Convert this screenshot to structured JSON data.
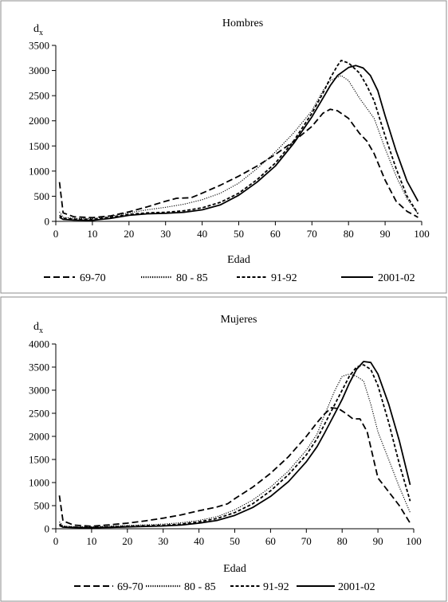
{
  "chart_data": [
    {
      "type": "line",
      "title": "Hombres",
      "ylabel_main": "d",
      "ylabel_sub": "x",
      "xlabel": "Edad",
      "xlim": [
        0,
        100
      ],
      "ylim": [
        0,
        3500
      ],
      "xticks": [
        0,
        10,
        20,
        30,
        40,
        50,
        60,
        70,
        80,
        90,
        100
      ],
      "yticks": [
        0,
        500,
        1000,
        1500,
        2000,
        2500,
        3000,
        3500
      ],
      "legend_position": "bottom",
      "grid": false,
      "series": [
        {
          "name": "69-70",
          "style": "dash",
          "x": [
            1,
            2,
            5,
            10,
            15,
            20,
            25,
            30,
            33,
            37,
            40,
            45,
            50,
            55,
            60,
            65,
            70,
            73,
            75,
            77,
            80,
            83,
            85,
            87,
            90,
            93,
            96,
            99
          ],
          "y": [
            780,
            170,
            90,
            75,
            110,
            190,
            290,
            400,
            460,
            470,
            560,
            720,
            900,
            1100,
            1330,
            1590,
            1890,
            2150,
            2230,
            2200,
            2050,
            1750,
            1600,
            1350,
            820,
            400,
            200,
            80
          ]
        },
        {
          "name": "80 - 85",
          "style": "dot",
          "x": [
            1,
            2,
            5,
            10,
            15,
            20,
            25,
            30,
            35,
            40,
            45,
            50,
            55,
            60,
            65,
            70,
            73,
            75,
            78,
            80,
            83,
            85,
            87,
            90,
            93,
            96,
            99
          ],
          "y": [
            190,
            80,
            60,
            55,
            100,
            170,
            230,
            280,
            340,
            430,
            560,
            760,
            1050,
            1380,
            1760,
            2200,
            2600,
            2800,
            2900,
            2800,
            2450,
            2250,
            2050,
            1450,
            900,
            450,
            150
          ]
        },
        {
          "name": "91-92",
          "style": "dash-short",
          "x": [
            1,
            2,
            5,
            10,
            15,
            20,
            25,
            30,
            35,
            40,
            45,
            50,
            55,
            60,
            65,
            70,
            73,
            75,
            77,
            78,
            80,
            83,
            85,
            87,
            90,
            93,
            96,
            99
          ],
          "y": [
            120,
            60,
            45,
            40,
            80,
            140,
            170,
            180,
            210,
            270,
            380,
            560,
            830,
            1160,
            1600,
            2150,
            2550,
            2850,
            3100,
            3200,
            3150,
            2950,
            2700,
            2400,
            1700,
            1050,
            500,
            150
          ]
        },
        {
          "name": "2001-02",
          "style": "solid",
          "x": [
            1,
            2,
            5,
            10,
            15,
            20,
            25,
            30,
            35,
            40,
            45,
            50,
            55,
            60,
            65,
            70,
            73,
            75,
            77,
            80,
            82,
            84,
            86,
            88,
            90,
            93,
            96,
            99
          ],
          "y": [
            80,
            40,
            25,
            20,
            60,
            120,
            150,
            160,
            180,
            230,
            330,
            520,
            780,
            1100,
            1550,
            2080,
            2450,
            2700,
            2900,
            3060,
            3100,
            3050,
            2900,
            2600,
            2100,
            1400,
            800,
            400
          ]
        }
      ]
    },
    {
      "type": "line",
      "title": "Mujeres",
      "ylabel_main": "d",
      "ylabel_sub": "x",
      "xlabel": "Edad",
      "xlim": [
        0,
        100
      ],
      "ylim": [
        0,
        4000
      ],
      "xticks": [
        0,
        10,
        20,
        30,
        40,
        50,
        60,
        70,
        80,
        90,
        100
      ],
      "yticks": [
        0,
        500,
        1000,
        1500,
        2000,
        2500,
        3000,
        3500,
        4000
      ],
      "legend_position": "bottom",
      "grid": false,
      "series": [
        {
          "name": "69-70",
          "style": "dash",
          "x": [
            1,
            2,
            5,
            10,
            15,
            20,
            25,
            30,
            35,
            40,
            45,
            48,
            50,
            55,
            60,
            65,
            70,
            73,
            75,
            77,
            79,
            81,
            83,
            85,
            87,
            90,
            93,
            96,
            99
          ],
          "y": [
            720,
            170,
            80,
            55,
            85,
            120,
            170,
            230,
            300,
            390,
            470,
            540,
            650,
            900,
            1200,
            1560,
            2000,
            2300,
            2480,
            2620,
            2600,
            2500,
            2380,
            2380,
            2100,
            1100,
            800,
            500,
            120
          ]
        },
        {
          "name": "80 - 85",
          "style": "dot",
          "x": [
            1,
            2,
            5,
            10,
            15,
            20,
            25,
            30,
            35,
            40,
            45,
            50,
            55,
            60,
            65,
            70,
            73,
            75,
            78,
            80,
            82,
            84,
            86,
            88,
            90,
            93,
            96,
            99
          ],
          "y": [
            150,
            60,
            45,
            40,
            55,
            70,
            85,
            100,
            130,
            180,
            260,
            410,
            620,
            900,
            1250,
            1700,
            2050,
            2450,
            3000,
            3300,
            3350,
            3300,
            3200,
            2700,
            2100,
            1500,
            900,
            350
          ]
        },
        {
          "name": "91-92",
          "style": "dash-short",
          "x": [
            1,
            2,
            5,
            10,
            15,
            20,
            25,
            30,
            35,
            40,
            45,
            50,
            55,
            60,
            65,
            70,
            73,
            75,
            78,
            80,
            82,
            84,
            86,
            88,
            90,
            93,
            96,
            99
          ],
          "y": [
            100,
            45,
            35,
            30,
            40,
            55,
            65,
            75,
            100,
            150,
            220,
            350,
            540,
            820,
            1170,
            1600,
            1950,
            2250,
            2700,
            3000,
            3300,
            3500,
            3550,
            3450,
            3100,
            2300,
            1400,
            600
          ]
        },
        {
          "name": "2001-02",
          "style": "solid",
          "x": [
            1,
            2,
            5,
            10,
            15,
            20,
            25,
            30,
            35,
            40,
            45,
            50,
            55,
            60,
            65,
            70,
            73,
            75,
            78,
            80,
            82,
            84,
            86,
            88,
            90,
            93,
            96,
            99
          ],
          "y": [
            70,
            35,
            25,
            20,
            30,
            40,
            50,
            60,
            80,
            120,
            180,
            290,
            460,
            700,
            1020,
            1450,
            1780,
            2060,
            2500,
            2800,
            3150,
            3450,
            3620,
            3600,
            3350,
            2700,
            1900,
            950
          ]
        }
      ]
    }
  ]
}
